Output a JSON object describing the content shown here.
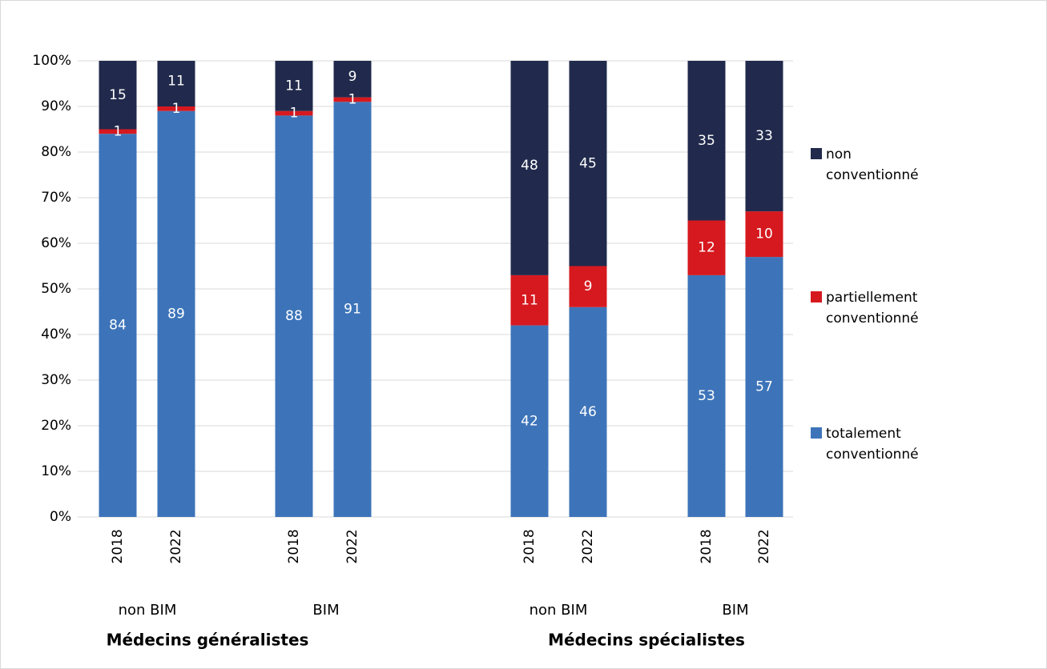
{
  "chart_data": {
    "type": "stacked_bar",
    "categories": [
      "2018",
      "2022",
      "2018",
      "2022",
      "2018",
      "2022",
      "2018",
      "2022"
    ],
    "groups": [
      "non BIM",
      "BIM",
      "non BIM",
      "BIM"
    ],
    "super_groups": [
      "Médecins généralistes",
      "Médecins spécialistes"
    ],
    "series": [
      {
        "name": "totalement conventionné",
        "color": "#3d74b9",
        "values": [
          84,
          89,
          88,
          91,
          42,
          46,
          53,
          57
        ]
      },
      {
        "name": "partiellement conventionné",
        "color": "#d6191f",
        "values": [
          1,
          1,
          1,
          1,
          11,
          9,
          12,
          10
        ]
      },
      {
        "name": "non conventionné",
        "color": "#212a4c",
        "values": [
          15,
          11,
          11,
          9,
          48,
          45,
          35,
          33
        ]
      }
    ],
    "ylim": [
      0,
      100
    ],
    "yticks": [
      {
        "value": 0,
        "label": "0%"
      },
      {
        "value": 10,
        "label": "10%"
      },
      {
        "value": 20,
        "label": "20%"
      },
      {
        "value": 30,
        "label": "30%"
      },
      {
        "value": 40,
        "label": "40%"
      },
      {
        "value": 50,
        "label": "50%"
      },
      {
        "value": 60,
        "label": "60%"
      },
      {
        "value": 70,
        "label": "70%"
      },
      {
        "value": 80,
        "label": "80%"
      },
      {
        "value": 90,
        "label": "90%"
      },
      {
        "value": 100,
        "label": "100%"
      }
    ],
    "grid": true,
    "legend": "right"
  }
}
